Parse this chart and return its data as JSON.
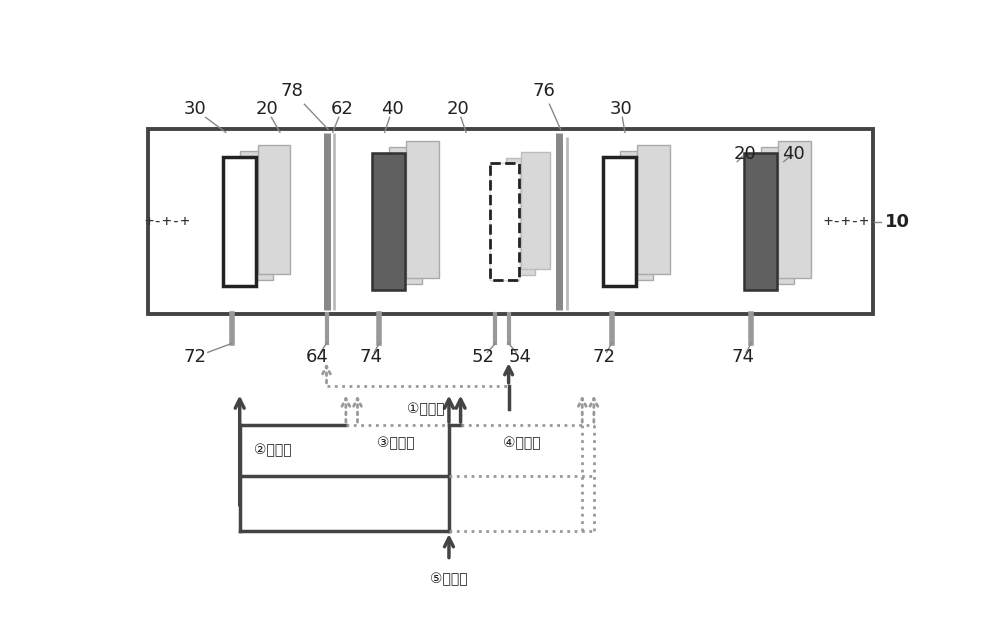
{
  "bg": "#ffffff",
  "dark_electrode": "#606060",
  "sep_color": "#d8d8d8",
  "box_edge": "#444444",
  "tab_color": "#999999",
  "arrow_dark": "#444444",
  "arrow_dash": "#999999",
  "label_color": "#222222",
  "circuit1_label": "①主通道",
  "circuit2_label": "②主通道",
  "circuit3_label": "③主通道",
  "circuit4_label": "④主通道",
  "circuit5_label": "⑤主通道"
}
